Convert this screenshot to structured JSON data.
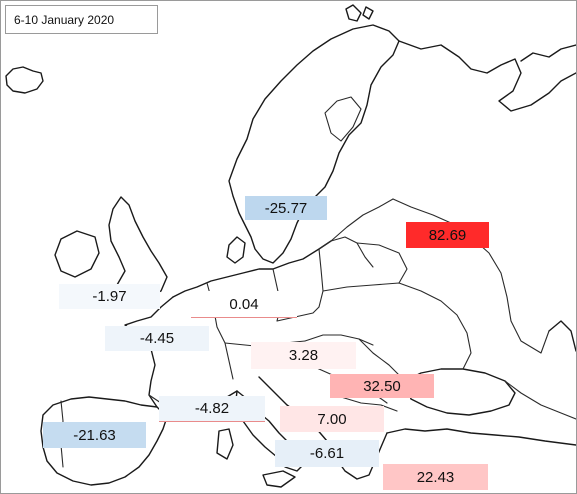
{
  "title": "6-10 January 2020",
  "labels": [
    {
      "id": "sweden",
      "value": "-25.77",
      "color": "#bdd7ee"
    },
    {
      "id": "russia",
      "value": "82.69",
      "color": "#ff2a2a"
    },
    {
      "id": "uk",
      "value": "-1.97",
      "color": "#f4f8fc"
    },
    {
      "id": "germany",
      "value": "0.04",
      "color": "#ffffff"
    },
    {
      "id": "france",
      "value": "-4.45",
      "color": "#eef4fa"
    },
    {
      "id": "hungary",
      "value": "3.28",
      "color": "#fff2f2"
    },
    {
      "id": "romania",
      "value": "32.50",
      "color": "#ffb4b4"
    },
    {
      "id": "italy-north",
      "value": "-4.82",
      "color": "#eef4fa"
    },
    {
      "id": "balkans",
      "value": "7.00",
      "color": "#ffe6e6"
    },
    {
      "id": "spain",
      "value": "-21.63",
      "color": "#c5dcf0"
    },
    {
      "id": "greece",
      "value": "-6.61",
      "color": "#e6eff8"
    },
    {
      "id": "turkey",
      "value": "22.43",
      "color": "#ffc6c6"
    }
  ]
}
